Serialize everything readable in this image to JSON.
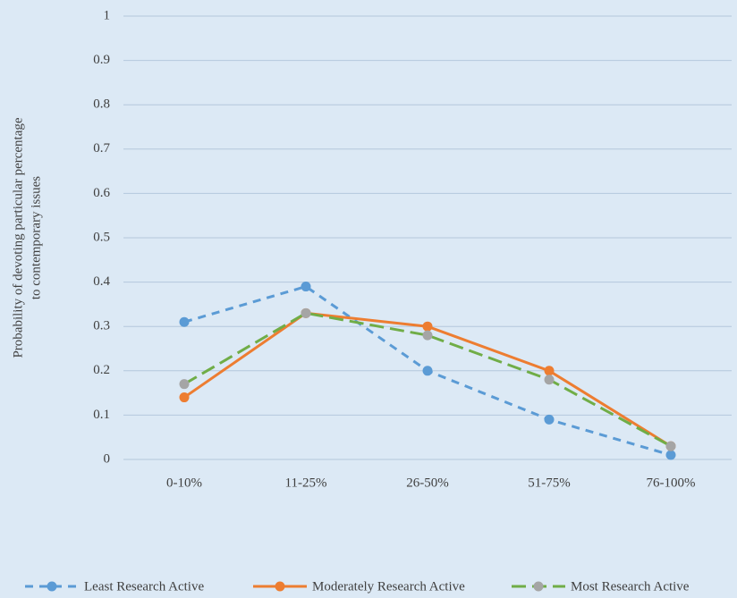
{
  "chart_data": {
    "type": "line",
    "ylabel": [
      "Probability of devoting particular percentage",
      "to contemporary issues"
    ],
    "categories": [
      "0-10%",
      "11-25%",
      "26-50%",
      "51-75%",
      "76-100%"
    ],
    "series": [
      {
        "name": "Least Research Active",
        "color": "#5b9bd5",
        "dash": "dashed",
        "values": [
          0.31,
          0.39,
          0.2,
          0.09,
          0.01
        ]
      },
      {
        "name": "Moderately Research Active",
        "color": "#ed7d31",
        "dash": "solid",
        "values": [
          0.14,
          0.33,
          0.3,
          0.2,
          0.03
        ]
      },
      {
        "name": "Most Research Active",
        "color": "#70ad47",
        "marker_color": "#a5a5a5",
        "dash": "long-dashed",
        "values": [
          0.17,
          0.33,
          0.28,
          0.18,
          0.03
        ]
      }
    ],
    "ylim": [
      0,
      1
    ],
    "yticks": [
      0,
      0.1,
      0.2,
      0.3,
      0.4,
      0.5,
      0.6,
      0.7,
      0.8,
      0.9,
      1
    ],
    "grid": true,
    "legend": "bottom"
  }
}
